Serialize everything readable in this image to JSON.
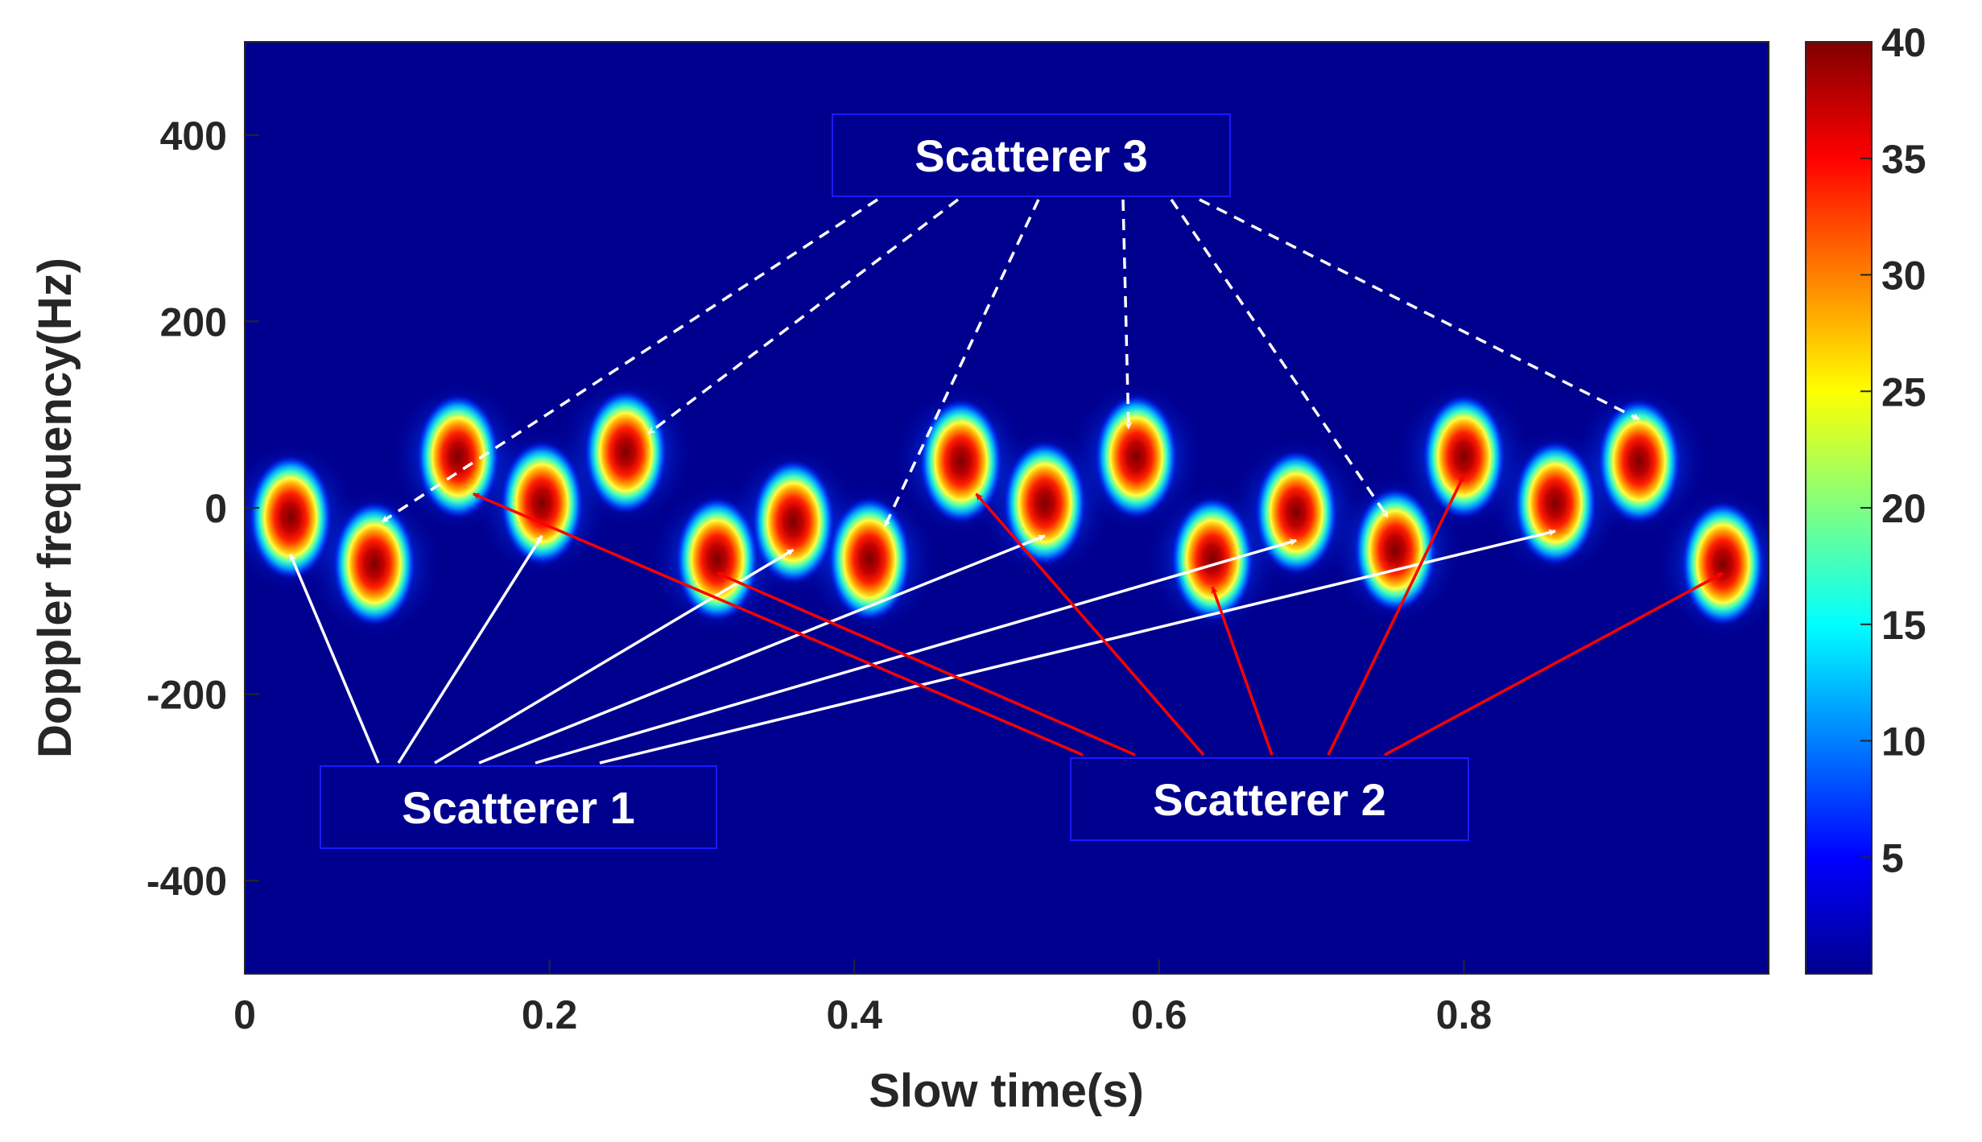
{
  "chart_data": {
    "type": "heatmap",
    "title": "",
    "xlabel": "Slow time(s)",
    "ylabel": "Doppler frequency(Hz)",
    "xlim": [
      0,
      1
    ],
    "ylim": [
      -500,
      500
    ],
    "xticks": [
      "0",
      "0.2",
      "0.4",
      "0.6",
      "0.8"
    ],
    "yticks": [
      "400",
      "200",
      "0",
      "-200",
      "-400"
    ],
    "colorbar": {
      "colormap": "jet",
      "clim": [
        0,
        40
      ],
      "ticks": [
        "5",
        "10",
        "15",
        "20",
        "25",
        "30",
        "35",
        "40"
      ]
    },
    "background_color": "#00008f",
    "series": [
      {
        "name": "Scatterer 1",
        "peak_level": 40,
        "points": [
          [
            0.03,
            -10
          ],
          [
            0.195,
            5
          ],
          [
            0.36,
            -15
          ],
          [
            0.525,
            5
          ],
          [
            0.69,
            -5
          ],
          [
            0.86,
            5
          ]
        ]
      },
      {
        "name": "Scatterer 2",
        "peak_level": 40,
        "points": [
          [
            0.085,
            -60
          ],
          [
            0.31,
            -55
          ],
          [
            0.41,
            -55
          ],
          [
            0.635,
            -55
          ],
          [
            0.755,
            -45
          ],
          [
            0.97,
            -60
          ]
        ]
      },
      {
        "name": "Scatterer 3",
        "peak_level": 40,
        "points": [
          [
            0.14,
            55
          ],
          [
            0.25,
            60
          ],
          [
            0.47,
            50
          ],
          [
            0.585,
            55
          ],
          [
            0.8,
            55
          ],
          [
            0.915,
            50
          ]
        ]
      }
    ],
    "annotations": [
      {
        "text": "Scatterer 1",
        "color": "#ffffff",
        "style": "solid",
        "targets": [
          [
            0.03,
            -50
          ],
          [
            0.195,
            -30
          ],
          [
            0.36,
            -45
          ],
          [
            0.525,
            -30
          ],
          [
            0.69,
            -35
          ],
          [
            0.86,
            -25
          ]
        ]
      },
      {
        "text": "Scatterer 2",
        "color": "#ff0000",
        "style": "solid",
        "targets": [
          [
            0.15,
            15
          ],
          [
            0.31,
            -70
          ],
          [
            0.48,
            15
          ],
          [
            0.635,
            -85
          ],
          [
            0.8,
            35
          ],
          [
            0.97,
            -70
          ]
        ]
      },
      {
        "text": "Scatterer 3",
        "color": "#ffffff",
        "style": "dashed",
        "targets": [
          [
            0.09,
            -15
          ],
          [
            0.265,
            80
          ],
          [
            0.42,
            -20
          ],
          [
            0.58,
            85
          ],
          [
            0.75,
            -10
          ],
          [
            0.915,
            95
          ]
        ]
      }
    ]
  }
}
